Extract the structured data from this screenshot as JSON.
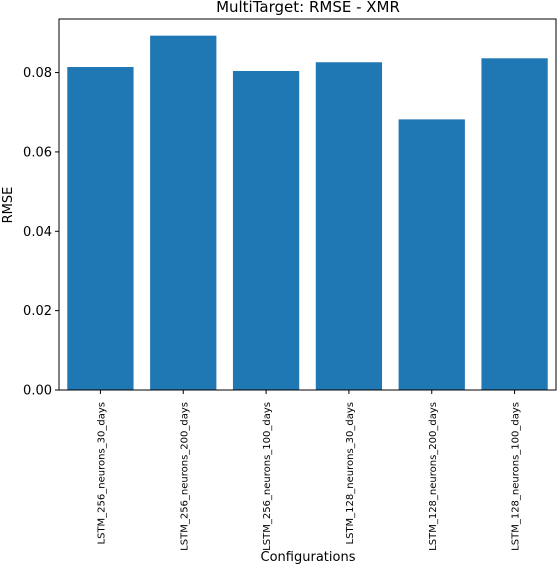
{
  "chart_data": {
    "type": "bar",
    "title": "MultiTarget: RMSE - XMR",
    "xlabel": "Configurations",
    "ylabel": "RMSE",
    "categories": [
      "LSTM_256_neurons_30_days",
      "LSTM_256_neurons_200_days",
      "LSTM_256_neurons_100_days",
      "LSTM_128_neurons_30_days",
      "LSTM_128_neurons_200_days",
      "LSTM_128_neurons_100_days"
    ],
    "values": [
      0.0814,
      0.0893,
      0.0804,
      0.0826,
      0.0682,
      0.0836
    ],
    "ylim": [
      0,
      0.0935
    ],
    "yticks": [
      0.0,
      0.02,
      0.04,
      0.06,
      0.08
    ],
    "ytick_labels": [
      "0.00",
      "0.02",
      "0.04",
      "0.06",
      "0.08"
    ],
    "bar_color": "#1f77b4",
    "grid": false,
    "legend": false
  }
}
